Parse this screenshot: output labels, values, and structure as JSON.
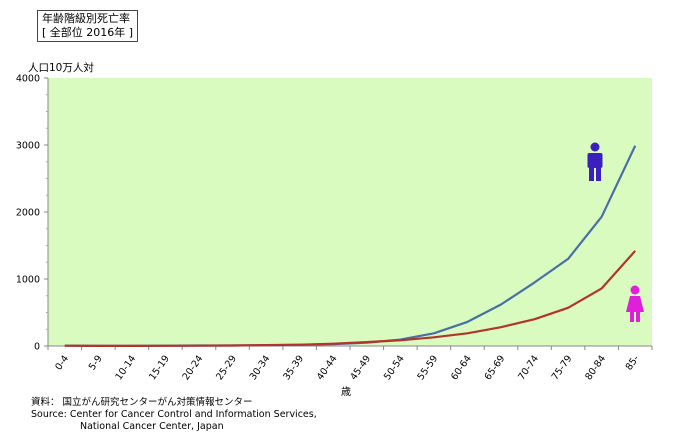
{
  "chart_data": {
    "type": "line",
    "title_lines": [
      "年齢階級別死亡率",
      "[ 全部位 2016年 ]"
    ],
    "ylabel": "人口10万人対",
    "xlabel": "歳",
    "ylim": [
      0,
      4000
    ],
    "yticks": [
      0,
      1000,
      2000,
      3000,
      4000
    ],
    "grid": false,
    "background": "#d9fbc0",
    "categories": [
      "0-4",
      "5-9",
      "10-14",
      "15-19",
      "20-24",
      "25-29",
      "30-34",
      "35-39",
      "40-44",
      "45-49",
      "50-54",
      "55-59",
      "60-64",
      "65-69",
      "70-74",
      "75-79",
      "80-84",
      "85-"
    ],
    "series": [
      {
        "icon": "male-figure-icon",
        "color": "#4a6fa5",
        "values": [
          5,
          2,
          2,
          5,
          7,
          8,
          12,
          18,
          28,
          50,
          95,
          190,
          360,
          620,
          950,
          1300,
          1930,
          2990
        ]
      },
      {
        "icon": "female-figure-icon",
        "color": "#b3342c",
        "values": [
          4,
          2,
          2,
          3,
          5,
          8,
          13,
          20,
          34,
          58,
          85,
          130,
          190,
          280,
          400,
          570,
          860,
          1420
        ]
      }
    ],
    "male_icon_color": "#3b1fbf",
    "female_icon_color": "#e020d8"
  },
  "source": {
    "line1": "資料：  国立がん研究センターがん対策情報センター",
    "line2": "Source: Center for Cancer Control and Information Services,",
    "line3": "National Cancer Center, Japan"
  }
}
